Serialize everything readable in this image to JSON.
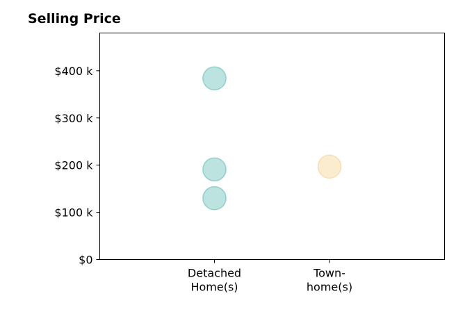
{
  "chart_data": {
    "type": "scatter",
    "title": "Selling Price",
    "xlabel": "",
    "ylabel": "",
    "categories": [
      [
        "Detached",
        "Home(s)"
      ],
      [
        "Town-",
        "home(s)"
      ]
    ],
    "yticks": [
      {
        "value": 0,
        "label": "$0"
      },
      {
        "value": 100000,
        "label": "$100 k"
      },
      {
        "value": 200000,
        "label": "$200 k"
      },
      {
        "value": 300000,
        "label": "$300 k"
      },
      {
        "value": 400000,
        "label": "$400 k"
      }
    ],
    "ylim": [
      0,
      480000
    ],
    "grid": false,
    "points": [
      {
        "category": 0,
        "y": 384000,
        "color": "#8fd1c9"
      },
      {
        "category": 0,
        "y": 191000,
        "color": "#8fd1c9"
      },
      {
        "category": 0,
        "y": 130000,
        "color": "#8fd1c9"
      },
      {
        "category": 1,
        "y": 197000,
        "color": "#f8dfb0"
      }
    ]
  }
}
